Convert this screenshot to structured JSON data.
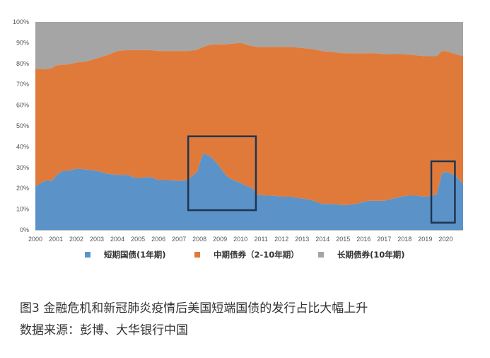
{
  "chart_data": {
    "type": "area",
    "stacked": true,
    "normalized": true,
    "x_range": [
      2000.0,
      2020.85
    ],
    "xticks": [
      "2000",
      "2001",
      "2002",
      "2003",
      "2004",
      "2005",
      "2006",
      "2007",
      "2008",
      "2009",
      "2010",
      "2011",
      "2012",
      "2013",
      "2014",
      "2015",
      "2016",
      "2017",
      "2018",
      "2019",
      "2020"
    ],
    "ylim": [
      0,
      100
    ],
    "yticks": [
      "0%",
      "10%",
      "20%",
      "30%",
      "40%",
      "50%",
      "60%",
      "70%",
      "80%",
      "90%",
      "100%"
    ],
    "grid": false,
    "legend_position": "bottom",
    "series": [
      {
        "name": "短期国债(1年期)",
        "color": "#5B93C8",
        "points": [
          [
            2000.0,
            21
          ],
          [
            2000.3,
            23
          ],
          [
            2000.6,
            24
          ],
          [
            2000.8,
            23
          ],
          [
            2001.0,
            26
          ],
          [
            2001.3,
            28.5
          ],
          [
            2001.7,
            28.5
          ],
          [
            2002.0,
            29.5
          ],
          [
            2002.5,
            29
          ],
          [
            2003.0,
            28.5
          ],
          [
            2003.5,
            27
          ],
          [
            2004.0,
            26.5
          ],
          [
            2004.5,
            26.5
          ],
          [
            2004.8,
            25
          ],
          [
            2005.2,
            25
          ],
          [
            2005.6,
            25.5
          ],
          [
            2006.0,
            24
          ],
          [
            2006.5,
            24
          ],
          [
            2007.0,
            23.5
          ],
          [
            2007.4,
            24
          ],
          [
            2007.7,
            26
          ],
          [
            2007.9,
            27
          ],
          [
            2008.05,
            33
          ],
          [
            2008.2,
            37
          ],
          [
            2008.35,
            36
          ],
          [
            2008.6,
            35
          ],
          [
            2008.9,
            32
          ],
          [
            2009.1,
            29
          ],
          [
            2009.3,
            26
          ],
          [
            2009.6,
            24
          ],
          [
            2009.9,
            23
          ],
          [
            2010.3,
            21
          ],
          [
            2010.6,
            20
          ],
          [
            2010.8,
            17
          ],
          [
            2011.2,
            16.5
          ],
          [
            2011.6,
            16.5
          ],
          [
            2012.0,
            16
          ],
          [
            2012.4,
            16
          ],
          [
            2012.7,
            15.5
          ],
          [
            2013.0,
            15
          ],
          [
            2013.4,
            14.5
          ],
          [
            2013.7,
            13.5
          ],
          [
            2014.0,
            12.5
          ],
          [
            2014.5,
            12.5
          ],
          [
            2015.0,
            12
          ],
          [
            2015.3,
            12
          ],
          [
            2015.6,
            12.5
          ],
          [
            2015.9,
            13
          ],
          [
            2016.2,
            14
          ],
          [
            2016.6,
            14
          ],
          [
            2017.0,
            14
          ],
          [
            2017.4,
            15
          ],
          [
            2017.8,
            16
          ],
          [
            2018.2,
            16.5
          ],
          [
            2018.6,
            16.5
          ],
          [
            2019.0,
            16
          ],
          [
            2019.3,
            16.5
          ],
          [
            2019.55,
            17
          ],
          [
            2019.7,
            22
          ],
          [
            2019.8,
            27
          ],
          [
            2020.0,
            28
          ],
          [
            2020.3,
            27
          ],
          [
            2020.55,
            25.5
          ],
          [
            2020.85,
            22
          ]
        ]
      },
      {
        "name": "中期债券（2-10年期）",
        "color": "#E07A3A",
        "points": [
          [
            2000.0,
            56.5
          ],
          [
            2000.5,
            54
          ],
          [
            2001.0,
            53
          ],
          [
            2001.5,
            51
          ],
          [
            2002.0,
            51
          ],
          [
            2002.5,
            52
          ],
          [
            2003.0,
            54
          ],
          [
            2003.5,
            57
          ],
          [
            2004.0,
            59.5
          ],
          [
            2004.5,
            60
          ],
          [
            2005.0,
            61
          ],
          [
            2005.5,
            61
          ],
          [
            2006.0,
            62
          ],
          [
            2006.5,
            62
          ],
          [
            2007.0,
            62.5
          ],
          [
            2007.5,
            62
          ],
          [
            2008.0,
            54.5
          ],
          [
            2008.2,
            51
          ],
          [
            2008.5,
            53.5
          ],
          [
            2009.0,
            60
          ],
          [
            2009.5,
            64.5
          ],
          [
            2010.0,
            67
          ],
          [
            2010.5,
            68
          ],
          [
            2010.8,
            71
          ],
          [
            2011.3,
            71.5
          ],
          [
            2012.0,
            72
          ],
          [
            2012.5,
            72
          ],
          [
            2013.0,
            72
          ],
          [
            2013.5,
            72.5
          ],
          [
            2014.0,
            73.5
          ],
          [
            2014.5,
            73
          ],
          [
            2015.0,
            73
          ],
          [
            2015.5,
            72.5
          ],
          [
            2016.0,
            71
          ],
          [
            2016.5,
            71
          ],
          [
            2017.0,
            70.5
          ],
          [
            2017.5,
            69.5
          ],
          [
            2018.0,
            68
          ],
          [
            2018.5,
            67.5
          ],
          [
            2019.0,
            67.5
          ],
          [
            2019.55,
            66.5
          ],
          [
            2019.8,
            59
          ],
          [
            2020.0,
            58
          ],
          [
            2020.5,
            58.5
          ],
          [
            2020.85,
            61.5
          ]
        ]
      },
      {
        "name": "长期债券(10年期)",
        "color": "#A5A5A5",
        "points": [
          [
            2000.0,
            22.5
          ],
          [
            2000.5,
            23
          ],
          [
            2001.0,
            21
          ],
          [
            2001.5,
            20.5
          ],
          [
            2002.0,
            19.5
          ],
          [
            2002.5,
            19
          ],
          [
            2003.0,
            17.5
          ],
          [
            2003.5,
            16
          ],
          [
            2004.0,
            14
          ],
          [
            2004.5,
            13.5
          ],
          [
            2005.0,
            13.5
          ],
          [
            2005.5,
            13.5
          ],
          [
            2006.0,
            14
          ],
          [
            2006.5,
            14
          ],
          [
            2007.0,
            14
          ],
          [
            2007.5,
            14
          ],
          [
            2008.0,
            12.5
          ],
          [
            2008.2,
            12
          ],
          [
            2008.5,
            11
          ],
          [
            2009.0,
            11
          ],
          [
            2009.5,
            10.5
          ],
          [
            2010.0,
            10
          ],
          [
            2010.5,
            11.5
          ],
          [
            2010.8,
            12
          ],
          [
            2011.3,
            12
          ],
          [
            2012.0,
            12
          ],
          [
            2012.5,
            12
          ],
          [
            2013.0,
            12.5
          ],
          [
            2013.5,
            13
          ],
          [
            2014.0,
            14
          ],
          [
            2014.5,
            14.5
          ],
          [
            2015.0,
            15
          ],
          [
            2015.5,
            15
          ],
          [
            2016.0,
            15
          ],
          [
            2016.5,
            15
          ],
          [
            2017.0,
            15.5
          ],
          [
            2017.5,
            15.5
          ],
          [
            2018.0,
            15.5
          ],
          [
            2018.5,
            16
          ],
          [
            2019.0,
            16.5
          ],
          [
            2019.55,
            16.5
          ],
          [
            2019.8,
            14
          ],
          [
            2020.0,
            14
          ],
          [
            2020.5,
            15.5
          ],
          [
            2020.85,
            16.5
          ]
        ]
      }
    ],
    "annotations": [
      {
        "type": "box",
        "x": [
          2007.45,
          2010.75
        ],
        "y": [
          9.5,
          45
        ]
      },
      {
        "type": "box",
        "x": [
          2019.3,
          2020.45
        ],
        "y": [
          3.5,
          33
        ]
      }
    ]
  },
  "caption": {
    "title": "图3  金融危机和新冠肺炎疫情后美国短端国债的发行占比大幅上升",
    "source": "数据来源：彭博、大华银行中国"
  }
}
